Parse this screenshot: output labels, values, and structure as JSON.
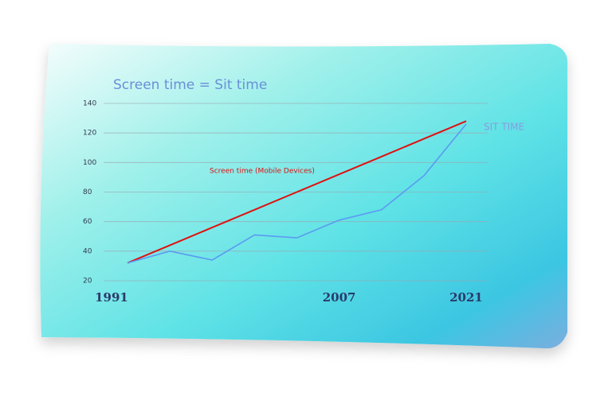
{
  "chart_data": {
    "type": "line",
    "title": "Screen time = Sit time",
    "categories": [
      "1991",
      null,
      null,
      null,
      null,
      "2007",
      null,
      null,
      "2021"
    ],
    "series": [
      {
        "name": "Screen time (Mobile Devices)",
        "color": "#e01010",
        "values": [
          32,
          44,
          56,
          68,
          80,
          92,
          104,
          116,
          128
        ]
      },
      {
        "name": "SIT TIME",
        "color": "#5b9bf0",
        "values": [
          32,
          40,
          34,
          51,
          49,
          61,
          68,
          91,
          126
        ]
      }
    ],
    "ylim": [
      20,
      140
    ],
    "yticks": [
      20,
      40,
      60,
      80,
      100,
      120,
      140
    ],
    "grid": true
  }
}
